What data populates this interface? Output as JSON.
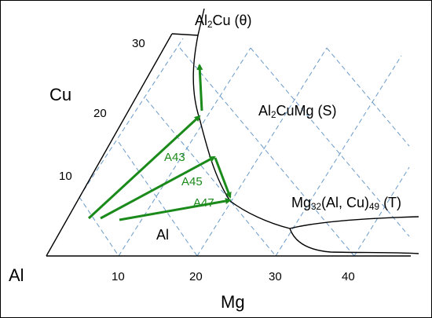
{
  "axes": {
    "cu_label": "Cu",
    "mg_label": "Mg",
    "al_label": "Al",
    "cu_ticks": [
      "10",
      "20",
      "30"
    ],
    "mg_ticks": [
      "10",
      "20",
      "30",
      "40"
    ]
  },
  "phases": {
    "theta": {
      "pre": "Al",
      "sub": "2",
      "post": "Cu (θ)"
    },
    "s": {
      "pre": "Al",
      "sub": "2",
      "post": "CuMg (S)"
    },
    "t": {
      "pre": "Mg",
      "sub1": "32",
      "mid": "(Al, Cu)",
      "sub2": "49",
      "post": " (T)"
    },
    "al": "Al"
  },
  "alloys": [
    "A43",
    "A45",
    "A47"
  ],
  "colors": {
    "grid": "#6a9ac9",
    "arrow": "#1a8a1a",
    "line": "#000000"
  }
}
